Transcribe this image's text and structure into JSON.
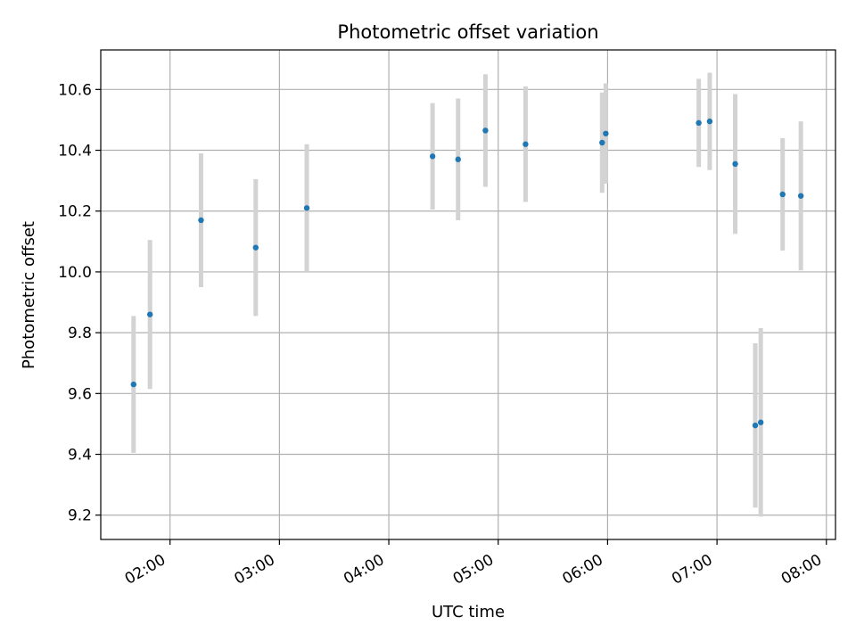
{
  "chart_data": {
    "type": "scatter",
    "title": "Photometric offset variation",
    "xlabel": "UTC time",
    "ylabel": "Photometric offset",
    "x_tick_labels": [
      "02:00",
      "03:00",
      "04:00",
      "05:00",
      "06:00",
      "07:00",
      "08:00"
    ],
    "y_tick_labels": [
      "9.2",
      "9.4",
      "9.6",
      "9.8",
      "10.0",
      "10.2",
      "10.4",
      "10.6"
    ],
    "xlim": [
      "01:22",
      "08:05"
    ],
    "ylim": [
      9.12,
      10.73
    ],
    "grid": true,
    "colors": {
      "points": "#1f77b4",
      "errorbars": "#d3d3d3",
      "grid": "#b0b0b0"
    },
    "points": [
      {
        "x": "01:40",
        "y": 9.63,
        "err": 0.225
      },
      {
        "x": "01:49",
        "y": 9.86,
        "err": 0.245
      },
      {
        "x": "02:17",
        "y": 10.17,
        "err": 0.22
      },
      {
        "x": "02:47",
        "y": 10.08,
        "err": 0.225
      },
      {
        "x": "03:15",
        "y": 10.21,
        "err": 0.21
      },
      {
        "x": "04:24",
        "y": 10.38,
        "err": 0.175
      },
      {
        "x": "04:38",
        "y": 10.37,
        "err": 0.2
      },
      {
        "x": "04:53",
        "y": 10.465,
        "err": 0.185
      },
      {
        "x": "05:15",
        "y": 10.42,
        "err": 0.19
      },
      {
        "x": "05:57",
        "y": 10.425,
        "err": 0.165
      },
      {
        "x": "05:59",
        "y": 10.455,
        "err": 0.165
      },
      {
        "x": "06:50",
        "y": 10.49,
        "err": 0.145
      },
      {
        "x": "06:56",
        "y": 10.495,
        "err": 0.16
      },
      {
        "x": "07:10",
        "y": 10.355,
        "err": 0.23
      },
      {
        "x": "07:21",
        "y": 9.495,
        "err": 0.27
      },
      {
        "x": "07:24",
        "y": 9.505,
        "err": 0.31
      },
      {
        "x": "07:36",
        "y": 10.255,
        "err": 0.185
      },
      {
        "x": "07:46",
        "y": 10.25,
        "err": 0.245
      }
    ]
  }
}
